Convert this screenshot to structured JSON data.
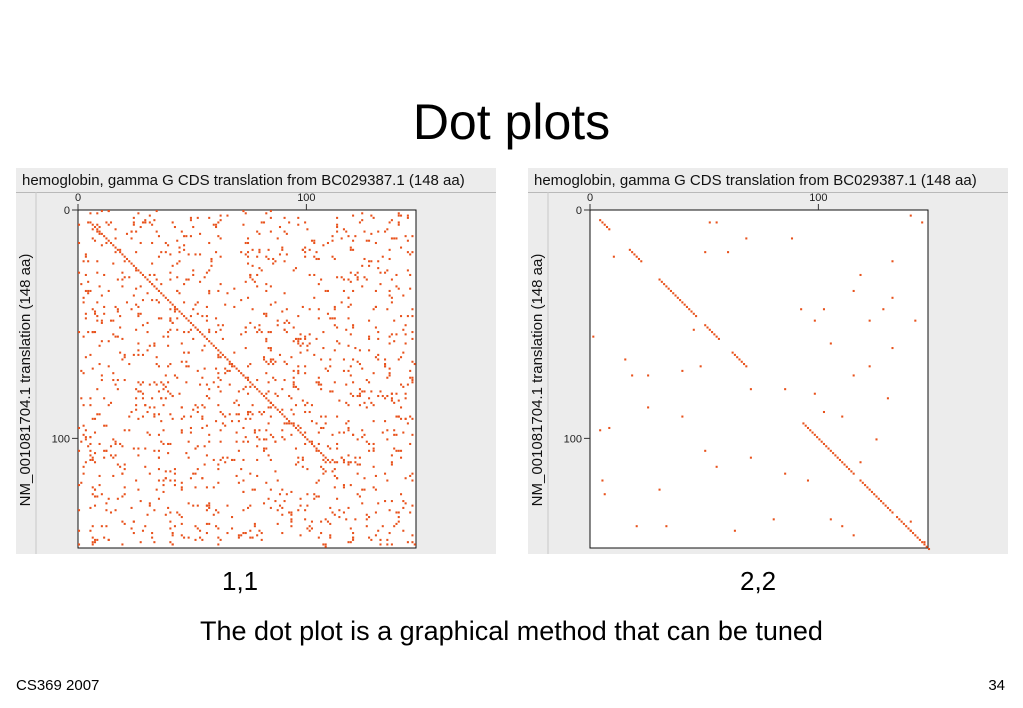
{
  "slide": {
    "title": "Dot plots",
    "subtitle": "The dot plot is a graphical method that can be tuned",
    "footer_left": "CS369 2007",
    "page_number": "34"
  },
  "chart_data": [
    {
      "type": "scatter",
      "caption": "1,1",
      "title": "hemoglobin, gamma G CDS translation from BC029387.1 (148 aa)",
      "xlabel": "",
      "ylabel": "NM_001081704.1 translation (148 aa)",
      "xlim": [
        0,
        148
      ],
      "ylim": [
        0,
        148
      ],
      "x_ticks": [
        0,
        100
      ],
      "y_ticks": [
        0,
        100
      ],
      "y_inverted": true,
      "grid": false,
      "dot_color": "#e8521c",
      "diagonal": {
        "from": 5,
        "to": 110
      },
      "random_dot_seed": 11,
      "random_dot_count": 1300
    },
    {
      "type": "scatter",
      "caption": "2,2",
      "title": "hemoglobin, gamma G CDS translation from BC029387.1 (148 aa)",
      "xlabel": "",
      "ylabel": "NM_001081704.1 translation (148 aa)",
      "xlim": [
        0,
        148
      ],
      "ylim": [
        0,
        148
      ],
      "x_ticks": [
        0,
        100
      ],
      "y_ticks": [
        0,
        100
      ],
      "y_inverted": true,
      "grid": false,
      "dot_color": "#e8521c",
      "diagonal_runs": [
        [
          4,
          8
        ],
        [
          17,
          22
        ],
        [
          30,
          46
        ],
        [
          50,
          56
        ],
        [
          62,
          68
        ],
        [
          93,
          115
        ],
        [
          118,
          132
        ],
        [
          134,
          148
        ]
      ],
      "points": [
        [
          52,
          5
        ],
        [
          55,
          5
        ],
        [
          140,
          2
        ],
        [
          145,
          5
        ],
        [
          68,
          12
        ],
        [
          88,
          12
        ],
        [
          50,
          18
        ],
        [
          60,
          18
        ],
        [
          10,
          20
        ],
        [
          132,
          22
        ],
        [
          118,
          28
        ],
        [
          115,
          35
        ],
        [
          132,
          38
        ],
        [
          92,
          43
        ],
        [
          102,
          43
        ],
        [
          128,
          43
        ],
        [
          122,
          48
        ],
        [
          142,
          48
        ],
        [
          45,
          52
        ],
        [
          98,
          48
        ],
        [
          1,
          55
        ],
        [
          105,
          58
        ],
        [
          132,
          60
        ],
        [
          15,
          65
        ],
        [
          48,
          68
        ],
        [
          18,
          72
        ],
        [
          25,
          72
        ],
        [
          40,
          70
        ],
        [
          122,
          68
        ],
        [
          115,
          72
        ],
        [
          70,
          78
        ],
        [
          85,
          78
        ],
        [
          98,
          80
        ],
        [
          130,
          82
        ],
        [
          25,
          86
        ],
        [
          102,
          88
        ],
        [
          110,
          90
        ],
        [
          40,
          90
        ],
        [
          8,
          95
        ],
        [
          4,
          96
        ],
        [
          50,
          105
        ],
        [
          70,
          108
        ],
        [
          55,
          112
        ],
        [
          125,
          100
        ],
        [
          118,
          110
        ],
        [
          95,
          118
        ],
        [
          85,
          115
        ],
        [
          30,
          122
        ],
        [
          5,
          118
        ],
        [
          6,
          124
        ],
        [
          20,
          138
        ],
        [
          33,
          138
        ],
        [
          63,
          140
        ],
        [
          80,
          135
        ],
        [
          105,
          135
        ],
        [
          110,
          138
        ],
        [
          115,
          142
        ],
        [
          140,
          136
        ],
        [
          140,
          140
        ],
        [
          146,
          145
        ]
      ]
    }
  ]
}
